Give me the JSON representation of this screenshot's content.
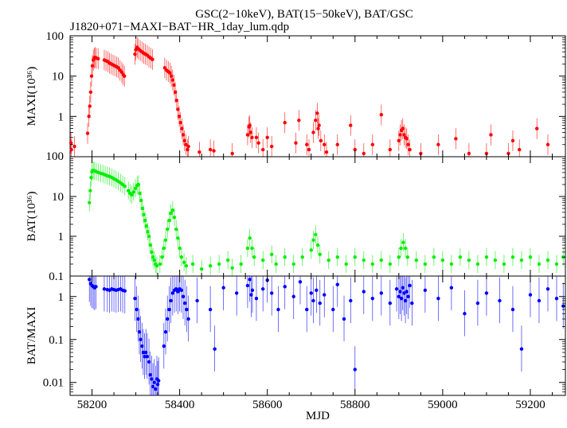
{
  "title": "GSC(2−10keV), BAT(15−50keV), BAT/GSC",
  "subtitle": "J1820+071−MAXI−BAT−HR_1day_lum.qdp",
  "colors": {
    "maxi": "#ff0000",
    "bat": "#00ee00",
    "ratio": "#0000ff"
  },
  "chart_data": [
    {
      "type": "scatter",
      "name": "maxi-panel",
      "ylabel": "MAXI(10³⁶)",
      "yscale": "log",
      "ylim": [
        0.1,
        100
      ],
      "xlim": [
        58150,
        59280
      ],
      "ytick_values": [
        100,
        10,
        1
      ],
      "ytick_labels": [
        "100",
        "10",
        "1"
      ],
      "bottom_label": "100",
      "points": [
        [
          58152,
          0.22
        ],
        [
          58153,
          0.15
        ],
        [
          58160,
          0.18
        ],
        [
          58190,
          0.38
        ],
        [
          58193,
          1.0
        ],
        [
          58195,
          1.8
        ],
        [
          58197,
          4
        ],
        [
          58199,
          10
        ],
        [
          58201,
          18
        ],
        [
          58203,
          25
        ],
        [
          58205,
          28
        ],
        [
          58207,
          29
        ],
        [
          58210,
          28
        ],
        [
          58214,
          27
        ],
        [
          58228,
          25
        ],
        [
          58232,
          24
        ],
        [
          58236,
          23
        ],
        [
          58240,
          21
        ],
        [
          58244,
          20
        ],
        [
          58248,
          19
        ],
        [
          58252,
          18
        ],
        [
          58256,
          17
        ],
        [
          58260,
          16
        ],
        [
          58264,
          14
        ],
        [
          58268,
          12.5
        ],
        [
          58271,
          11
        ],
        [
          58274,
          10
        ],
        [
          58298,
          35
        ],
        [
          58300,
          45
        ],
        [
          58303,
          52
        ],
        [
          58306,
          47
        ],
        [
          58310,
          43
        ],
        [
          58314,
          40
        ],
        [
          58318,
          37
        ],
        [
          58322,
          35
        ],
        [
          58326,
          33
        ],
        [
          58330,
          30
        ],
        [
          58334,
          28
        ],
        [
          58338,
          26
        ],
        [
          58366,
          16
        ],
        [
          58370,
          14
        ],
        [
          58374,
          13
        ],
        [
          58378,
          12
        ],
        [
          58381,
          10
        ],
        [
          58384,
          8
        ],
        [
          58387,
          6
        ],
        [
          58390,
          4
        ],
        [
          58393,
          2.5
        ],
        [
          58396,
          1.5
        ],
        [
          58399,
          1.0
        ],
        [
          58402,
          0.7
        ],
        [
          58405,
          0.5
        ],
        [
          58408,
          0.35
        ],
        [
          58411,
          0.25
        ],
        [
          58414,
          0.2
        ],
        [
          58418,
          0.15
        ],
        [
          58420,
          0.18
        ],
        [
          58445,
          0.13
        ],
        [
          58470,
          0.15
        ],
        [
          58478,
          0.14
        ],
        [
          58520,
          0.12
        ],
        [
          58555,
          0.35
        ],
        [
          58558,
          0.55
        ],
        [
          58560,
          0.6
        ],
        [
          58562,
          0.4
        ],
        [
          58565,
          0.3
        ],
        [
          58575,
          0.3
        ],
        [
          58580,
          0.22
        ],
        [
          58590,
          0.15
        ],
        [
          58600,
          0.3
        ],
        [
          58610,
          0.18
        ],
        [
          58640,
          0.7
        ],
        [
          58665,
          0.22
        ],
        [
          58672,
          0.8
        ],
        [
          58690,
          0.2
        ],
        [
          58695,
          0.15
        ],
        [
          58705,
          0.4
        ],
        [
          58710,
          0.8
        ],
        [
          58714,
          1.2
        ],
        [
          58716,
          0.5
        ],
        [
          58718,
          0.6
        ],
        [
          58722,
          0.25
        ],
        [
          58730,
          0.2
        ],
        [
          58735,
          0.13
        ],
        [
          58760,
          0.2
        ],
        [
          58790,
          0.6
        ],
        [
          58800,
          0.15
        ],
        [
          58820,
          0.12
        ],
        [
          58840,
          0.2
        ],
        [
          58860,
          1.1
        ],
        [
          58880,
          0.15
        ],
        [
          58900,
          0.25
        ],
        [
          58903,
          0.35
        ],
        [
          58906,
          0.45
        ],
        [
          58909,
          0.5
        ],
        [
          58912,
          0.35
        ],
        [
          58915,
          0.3
        ],
        [
          58918,
          0.28
        ],
        [
          58921,
          0.2
        ],
        [
          58925,
          0.15
        ],
        [
          58950,
          0.12
        ],
        [
          58990,
          0.2
        ],
        [
          59030,
          0.28
        ],
        [
          59060,
          0.12
        ],
        [
          59100,
          0.12
        ],
        [
          59110,
          0.35
        ],
        [
          59150,
          0.12
        ],
        [
          59160,
          0.25
        ],
        [
          59175,
          0.15
        ],
        [
          59215,
          0.5
        ],
        [
          59240,
          0.2
        ]
      ]
    },
    {
      "type": "scatter",
      "name": "bat-panel",
      "ylabel": "BAT(10³⁶)",
      "yscale": "log",
      "ylim": [
        0.1,
        100
      ],
      "xlim": [
        58150,
        59280
      ],
      "ytick_values": [
        10,
        1
      ],
      "ytick_labels": [
        "10",
        "1"
      ],
      "bottom_label": "0.1",
      "points": [
        [
          58194,
          7
        ],
        [
          58196,
          14
        ],
        [
          58198,
          30
        ],
        [
          58200,
          42
        ],
        [
          58203,
          45
        ],
        [
          58206,
          44
        ],
        [
          58210,
          42
        ],
        [
          58215,
          40
        ],
        [
          58220,
          38
        ],
        [
          58225,
          37
        ],
        [
          58230,
          35
        ],
        [
          58235,
          33
        ],
        [
          58240,
          32
        ],
        [
          58245,
          30
        ],
        [
          58250,
          28
        ],
        [
          58255,
          26
        ],
        [
          58260,
          24
        ],
        [
          58265,
          22
        ],
        [
          58270,
          20
        ],
        [
          58275,
          18
        ],
        [
          58283,
          14
        ],
        [
          58287,
          12
        ],
        [
          58291,
          11
        ],
        [
          58295,
          13
        ],
        [
          58299,
          16
        ],
        [
          58303,
          19
        ],
        [
          58306,
          20
        ],
        [
          58309,
          12
        ],
        [
          58312,
          8
        ],
        [
          58315,
          5
        ],
        [
          58318,
          3.5
        ],
        [
          58321,
          2.5
        ],
        [
          58324,
          1.8
        ],
        [
          58327,
          1.3
        ],
        [
          58330,
          1.0
        ],
        [
          58333,
          0.6
        ],
        [
          58336,
          0.4
        ],
        [
          58339,
          0.3
        ],
        [
          58342,
          0.25
        ],
        [
          58345,
          0.2
        ],
        [
          58348,
          0.18
        ],
        [
          58355,
          0.2
        ],
        [
          58360,
          0.3
        ],
        [
          58364,
          0.5
        ],
        [
          58368,
          0.8
        ],
        [
          58372,
          1.5
        ],
        [
          58376,
          2.5
        ],
        [
          58380,
          3.8
        ],
        [
          58384,
          4.5
        ],
        [
          58388,
          3
        ],
        [
          58392,
          1.5
        ],
        [
          58396,
          0.9
        ],
        [
          58400,
          0.5
        ],
        [
          58404,
          0.3
        ],
        [
          58410,
          0.22
        ],
        [
          58415,
          0.18
        ],
        [
          58430,
          0.2
        ],
        [
          58450,
          0.15
        ],
        [
          58470,
          0.18
        ],
        [
          58490,
          0.2
        ],
        [
          58510,
          0.25
        ],
        [
          58520,
          0.16
        ],
        [
          58540,
          0.2
        ],
        [
          58555,
          0.5
        ],
        [
          58560,
          0.9
        ],
        [
          58565,
          0.5
        ],
        [
          58570,
          0.3
        ],
        [
          58590,
          0.25
        ],
        [
          58610,
          0.35
        ],
        [
          58620,
          0.2
        ],
        [
          58640,
          0.3
        ],
        [
          58660,
          0.2
        ],
        [
          58680,
          0.3
        ],
        [
          58700,
          0.45
        ],
        [
          58705,
          0.8
        ],
        [
          58710,
          1.1
        ],
        [
          58715,
          0.6
        ],
        [
          58720,
          0.35
        ],
        [
          58740,
          0.25
        ],
        [
          58760,
          0.3
        ],
        [
          58780,
          0.2
        ],
        [
          58800,
          0.3
        ],
        [
          58820,
          0.25
        ],
        [
          58840,
          0.2
        ],
        [
          58860,
          0.25
        ],
        [
          58880,
          0.2
        ],
        [
          58900,
          0.3
        ],
        [
          58905,
          0.5
        ],
        [
          58910,
          0.7
        ],
        [
          58915,
          0.5
        ],
        [
          58920,
          0.3
        ],
        [
          58940,
          0.25
        ],
        [
          58960,
          0.2
        ],
        [
          58980,
          0.3
        ],
        [
          59000,
          0.25
        ],
        [
          59020,
          0.2
        ],
        [
          59040,
          0.3
        ],
        [
          59060,
          0.25
        ],
        [
          59080,
          0.2
        ],
        [
          59100,
          0.3
        ],
        [
          59120,
          0.25
        ],
        [
          59140,
          0.2
        ],
        [
          59160,
          0.3
        ],
        [
          59180,
          0.25
        ],
        [
          59200,
          0.3
        ],
        [
          59220,
          0.2
        ],
        [
          59240,
          0.25
        ],
        [
          59260,
          0.2
        ],
        [
          59275,
          0.3
        ]
      ]
    },
    {
      "type": "scatter",
      "name": "ratio-panel",
      "ylabel": "BAT/MAXI",
      "xlabel": "MJD",
      "yscale": "log",
      "ylim": [
        0.005,
        3
      ],
      "xlim": [
        58150,
        59280
      ],
      "ytick_values": [
        1,
        0.1,
        0.01
      ],
      "ytick_labels": [
        "1",
        "0.1",
        "0.01"
      ],
      "xtick_values": [
        58200,
        58400,
        58600,
        58800,
        59000,
        59200
      ],
      "xtick_labels": [
        "58200",
        "58400",
        "58600",
        "58800",
        "59000",
        "59200"
      ],
      "points": [
        [
          58194,
          2.5
        ],
        [
          58197,
          2.0
        ],
        [
          58200,
          1.8
        ],
        [
          58203,
          1.7
        ],
        [
          58206,
          1.6
        ],
        [
          58209,
          1.7
        ],
        [
          58228,
          1.5
        ],
        [
          58235,
          1.45
        ],
        [
          58240,
          1.4
        ],
        [
          58245,
          1.5
        ],
        [
          58250,
          1.45
        ],
        [
          58255,
          1.4
        ],
        [
          58260,
          1.45
        ],
        [
          58265,
          1.5
        ],
        [
          58270,
          1.4
        ],
        [
          58275,
          1.35
        ],
        [
          58298,
          0.9
        ],
        [
          58302,
          0.5
        ],
        [
          58305,
          0.3
        ],
        [
          58308,
          0.15
        ],
        [
          58311,
          0.1
        ],
        [
          58314,
          0.07
        ],
        [
          58317,
          0.05
        ],
        [
          58320,
          0.04
        ],
        [
          58323,
          0.05
        ],
        [
          58326,
          0.04
        ],
        [
          58330,
          0.03
        ],
        [
          58333,
          0.015
        ],
        [
          58336,
          0.012
        ],
        [
          58339,
          0.008
        ],
        [
          58342,
          0.01
        ],
        [
          58345,
          0.007
        ],
        [
          58348,
          0.012
        ],
        [
          58350,
          0.009
        ],
        [
          58352,
          0.011
        ],
        [
          58364,
          0.07
        ],
        [
          58368,
          0.15
        ],
        [
          58372,
          0.3
        ],
        [
          58376,
          0.5
        ],
        [
          58380,
          0.8
        ],
        [
          58384,
          1.2
        ],
        [
          58388,
          1.4
        ],
        [
          58392,
          1.5
        ],
        [
          58396,
          1.3
        ],
        [
          58400,
          1.5
        ],
        [
          58404,
          1.4
        ],
        [
          58408,
          1.0
        ],
        [
          58412,
          0.7
        ],
        [
          58416,
          0.5
        ],
        [
          58420,
          0.3
        ],
        [
          58440,
          0.8
        ],
        [
          58470,
          0.5
        ],
        [
          58480,
          0.06
        ],
        [
          58500,
          1.6
        ],
        [
          58530,
          1.2
        ],
        [
          58555,
          1.8
        ],
        [
          58560,
          2.5
        ],
        [
          58563,
          1.1
        ],
        [
          58566,
          1.4
        ],
        [
          58575,
          0.9
        ],
        [
          58590,
          1.5
        ],
        [
          58600,
          2.4
        ],
        [
          58610,
          1.2
        ],
        [
          58625,
          0.5
        ],
        [
          58640,
          1.7
        ],
        [
          58660,
          1.0
        ],
        [
          58675,
          2.2
        ],
        [
          58690,
          0.5
        ],
        [
          58700,
          1.2
        ],
        [
          58705,
          0.8
        ],
        [
          58712,
          1.4
        ],
        [
          58720,
          0.7
        ],
        [
          58730,
          1.1
        ],
        [
          58750,
          0.5
        ],
        [
          58760,
          1.9
        ],
        [
          58775,
          0.3
        ],
        [
          58790,
          0.8
        ],
        [
          58800,
          0.02
        ],
        [
          58820,
          1.3
        ],
        [
          58840,
          0.9
        ],
        [
          58860,
          1.2
        ],
        [
          58880,
          0.7
        ],
        [
          58895,
          1.5
        ],
        [
          58900,
          1.0
        ],
        [
          58903,
          1.3
        ],
        [
          58906,
          0.9
        ],
        [
          58909,
          1.6
        ],
        [
          58912,
          1.2
        ],
        [
          58915,
          0.8
        ],
        [
          58918,
          1.3
        ],
        [
          58921,
          1.0
        ],
        [
          58925,
          1.8
        ],
        [
          58930,
          0.7
        ],
        [
          58960,
          1.4
        ],
        [
          58990,
          0.9
        ],
        [
          59020,
          1.6
        ],
        [
          59050,
          0.4
        ],
        [
          59080,
          0.7
        ],
        [
          59100,
          1.2
        ],
        [
          59130,
          0.8
        ],
        [
          59160,
          0.5
        ],
        [
          59180,
          0.06
        ],
        [
          59200,
          1.1
        ],
        [
          59220,
          0.8
        ],
        [
          59240,
          1.5
        ],
        [
          59260,
          0.9
        ],
        [
          59275,
          0.6
        ]
      ]
    }
  ]
}
